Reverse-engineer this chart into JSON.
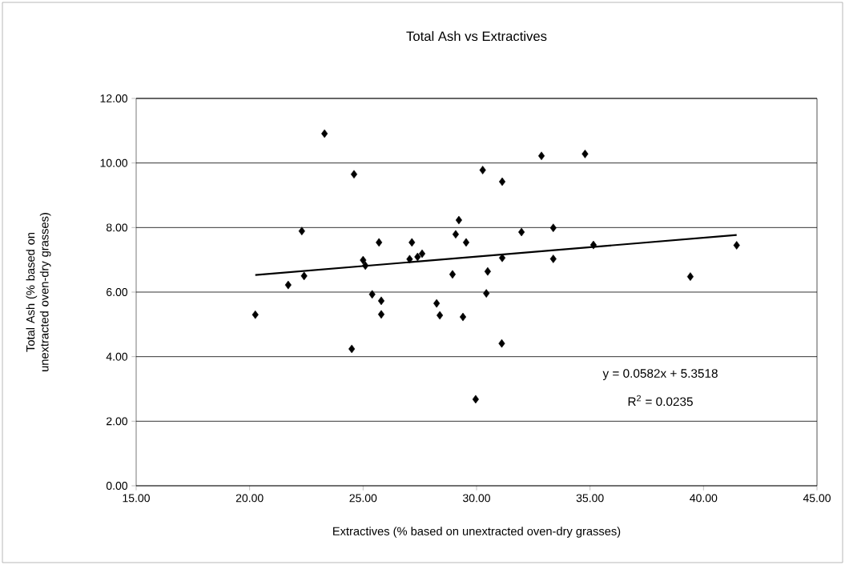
{
  "chart_data": {
    "type": "scatter",
    "title": "Total Ash vs Extractives",
    "xlabel": "Extractives (% based on unextracted oven-dry grasses)",
    "ylabel": "Total Ash (% based on unextracted oven-dry grasses)",
    "xlim": [
      15,
      45
    ],
    "ylim": [
      0,
      12
    ],
    "xticks": [
      {
        "value": 15,
        "label": "15.00"
      },
      {
        "value": 20,
        "label": "20.00"
      },
      {
        "value": 25,
        "label": "25.00"
      },
      {
        "value": 30,
        "label": "30.00"
      },
      {
        "value": 35,
        "label": "35.00"
      },
      {
        "value": 40,
        "label": "40.00"
      },
      {
        "value": 45,
        "label": "45.00"
      }
    ],
    "yticks": [
      {
        "value": 0,
        "label": "0.00"
      },
      {
        "value": 2,
        "label": "2.00"
      },
      {
        "value": 4,
        "label": "4.00"
      },
      {
        "value": 6,
        "label": "6.00"
      },
      {
        "value": 8,
        "label": "8.00"
      },
      {
        "value": 10,
        "label": "10.00"
      },
      {
        "value": 12,
        "label": "12.00"
      }
    ],
    "grid": "y",
    "marker": "diamond",
    "series": [
      {
        "color": "#000000",
        "x": [
          20.25,
          21.7,
          22.3,
          22.4,
          23.3,
          24.5,
          24.6,
          25.0,
          25.1,
          25.4,
          25.7,
          25.8,
          25.8,
          27.15,
          27.05,
          27.4,
          27.6,
          28.24,
          28.38,
          28.94,
          29.08,
          29.22,
          29.54,
          29.4,
          29.96,
          30.27,
          31.13,
          30.49,
          30.43,
          31.11,
          31.13,
          31.98,
          32.86,
          33.38,
          33.38,
          34.78,
          35.15,
          39.42,
          41.46
        ],
        "values": [
          5.3,
          6.22,
          7.89,
          6.5,
          10.91,
          4.24,
          9.65,
          6.99,
          6.82,
          5.93,
          7.54,
          5.73,
          5.31,
          7.54,
          7.02,
          7.09,
          7.19,
          5.65,
          5.28,
          6.55,
          7.79,
          8.23,
          7.54,
          5.23,
          2.68,
          9.78,
          9.42,
          6.64,
          5.96,
          4.41,
          7.06,
          7.86,
          10.22,
          7.99,
          7.03,
          10.28,
          7.46,
          6.48,
          7.45
        ]
      },
      {
        "type": "line",
        "color": "#000000",
        "marker": "none",
        "x": [
          20.25,
          41.46
        ],
        "values": [
          6.53,
          7.77
        ]
      }
    ],
    "annotations": [
      "y = 0.0582x + 5.3518",
      "R$^{2}$ = 0.0235"
    ]
  }
}
